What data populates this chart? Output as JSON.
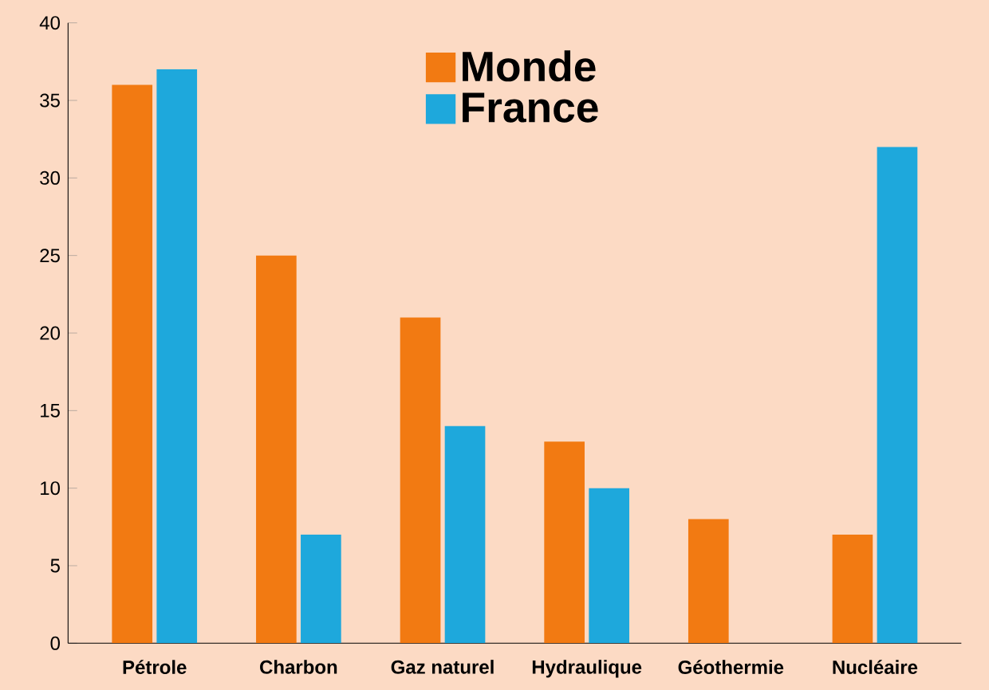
{
  "chart_data": {
    "type": "bar",
    "categories": [
      "Pétrole",
      "Charbon",
      "Gaz naturel",
      "Hydraulique",
      "Géothermie",
      "Nucléaire"
    ],
    "series": [
      {
        "name": "Monde",
        "color": "#f27a12",
        "values": [
          36,
          25,
          21,
          13,
          8,
          7
        ]
      },
      {
        "name": "France",
        "color": "#1ea8dc",
        "values": [
          37,
          7,
          14,
          10,
          null,
          32
        ]
      }
    ],
    "ylim": [
      0,
      40
    ],
    "yticks": [
      0,
      5,
      10,
      15,
      20,
      25,
      30,
      35,
      40
    ],
    "grid": false,
    "legend": "top"
  }
}
